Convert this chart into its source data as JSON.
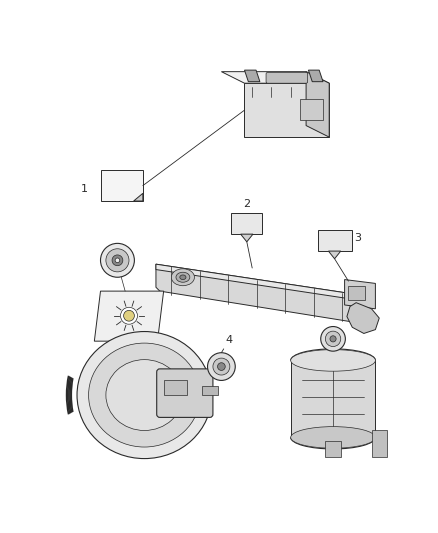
{
  "bg_color": "#ffffff",
  "fig_width": 4.38,
  "fig_height": 5.33,
  "dpi": 100,
  "line_color": "#2a2a2a",
  "fill_light": "#f0f0f0",
  "fill_mid": "#d8d8d8",
  "fill_dark": "#b0b0b0"
}
